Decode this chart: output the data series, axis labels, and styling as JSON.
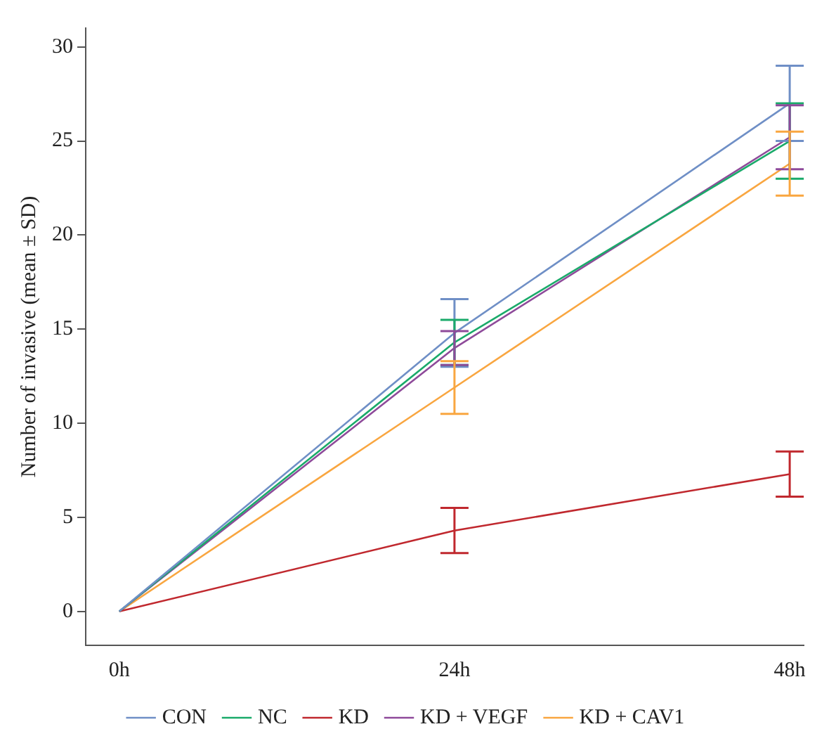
{
  "chart_data": {
    "type": "line",
    "ylabel": "Number of invasive (mean ± SD)",
    "x": [
      0,
      24,
      48
    ],
    "xlim": [
      -2.4,
      49
    ],
    "xticks": [
      {
        "value": 0,
        "label": "0h"
      },
      {
        "value": 24,
        "label": "24h"
      },
      {
        "value": 48,
        "label": "48h"
      }
    ],
    "ylim": [
      -1.8,
      31
    ],
    "yticks": [
      0,
      5,
      10,
      15,
      20,
      25,
      30
    ],
    "grid": false,
    "legend": "bottom",
    "marker": "none",
    "series": [
      {
        "name": "CON",
        "color": "#6f8fc6",
        "values": [
          0,
          14.8,
          27.0
        ],
        "errors": [
          null,
          1.8,
          2.0
        ]
      },
      {
        "name": "NC",
        "color": "#1aaa6a",
        "values": [
          0,
          14.3,
          25.0
        ],
        "errors": [
          null,
          1.2,
          2.0
        ]
      },
      {
        "name": "KD",
        "color": "#c0282e",
        "values": [
          0,
          4.3,
          7.3
        ],
        "errors": [
          null,
          1.2,
          1.2
        ]
      },
      {
        "name": "KD + VEGF",
        "color": "#8e4a9a",
        "values": [
          0,
          14.0,
          25.2
        ],
        "errors": [
          null,
          0.9,
          1.7
        ]
      },
      {
        "name": "KD + CAV1",
        "color": "#f9a640",
        "values": [
          0,
          11.9,
          23.8
        ],
        "errors": [
          null,
          1.4,
          1.7
        ]
      }
    ]
  }
}
